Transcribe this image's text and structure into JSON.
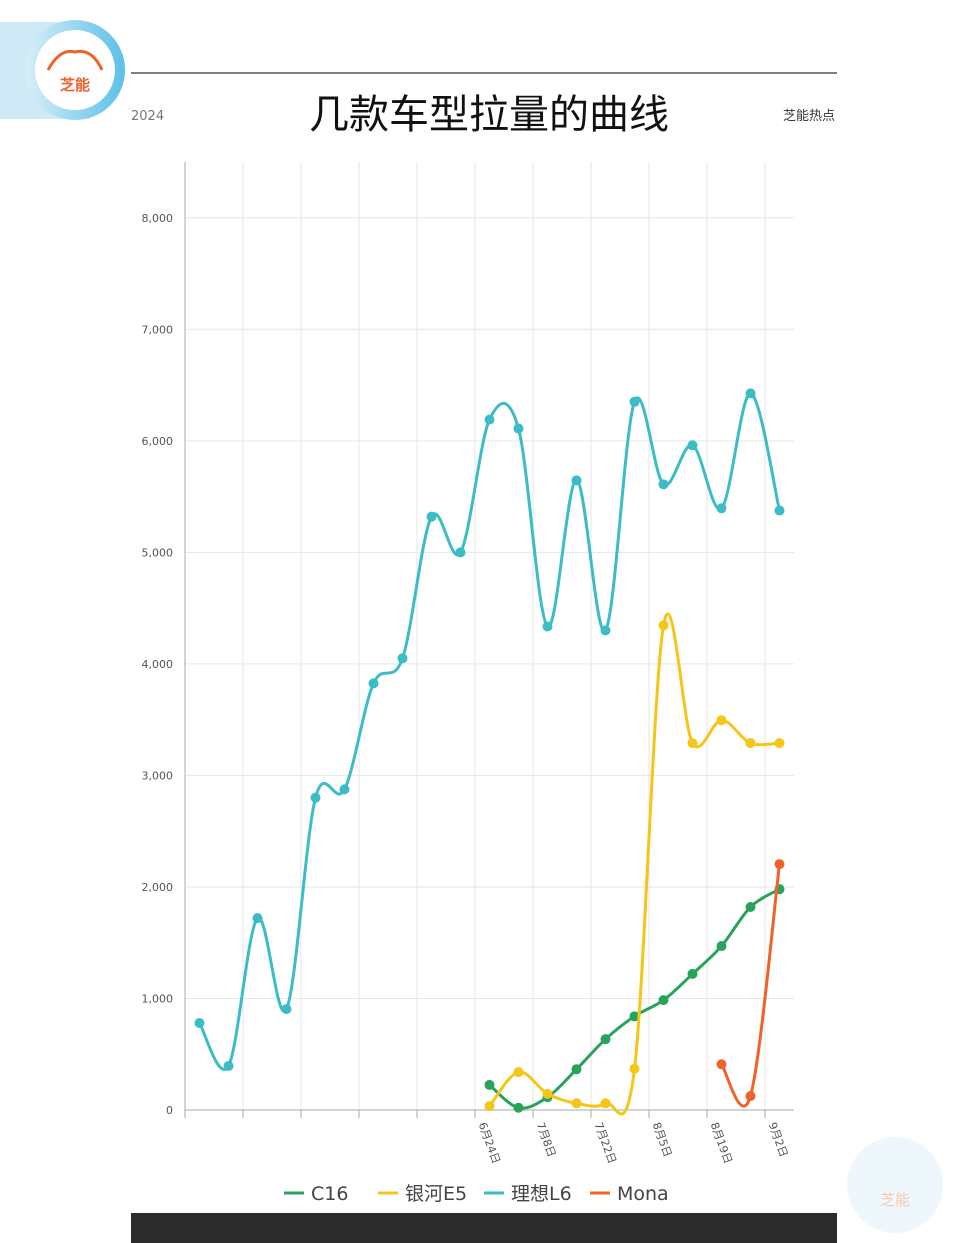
{
  "header": {
    "logo": "芝能",
    "year": "2024",
    "title": "几款车型拉量的曲线",
    "source": "芝能热点"
  },
  "chart_data": {
    "type": "line",
    "categories": [
      null,
      null,
      null,
      null,
      null,
      null,
      null,
      null,
      null,
      null,
      "6月24日",
      null,
      "7月8日",
      null,
      "7月22日",
      null,
      "8月5日",
      null,
      "8月19日",
      null,
      "9月2日"
    ],
    "series": [
      {
        "name": "C16",
        "color": "#27a35a",
        "values": [
          null,
          null,
          null,
          null,
          null,
          null,
          null,
          null,
          null,
          null,
          225,
          20,
          115,
          365,
          635,
          840,
          985,
          1220,
          1470,
          1820,
          1980
        ]
      },
      {
        "name": "银河E5",
        "color": "#f5c518",
        "values": [
          null,
          null,
          null,
          null,
          null,
          null,
          null,
          null,
          null,
          null,
          35,
          340,
          145,
          60,
          60,
          370,
          4345,
          3290,
          3495,
          3290,
          3290
        ]
      },
      {
        "name": "理想L6",
        "color": "#3bbcc6",
        "values": [
          780,
          395,
          1720,
          905,
          2800,
          2875,
          3825,
          4050,
          5320,
          5000,
          6190,
          6110,
          4335,
          5645,
          4300,
          6350,
          5610,
          5960,
          5395,
          6425,
          5375
        ]
      },
      {
        "name": "Mona",
        "color": "#f0622a",
        "values": [
          null,
          null,
          null,
          null,
          null,
          null,
          null,
          null,
          null,
          null,
          null,
          null,
          null,
          null,
          null,
          null,
          null,
          null,
          410,
          125,
          2205
        ]
      }
    ],
    "ylim": [
      0,
      8500
    ],
    "yticks": [
      0,
      {
        "value": 1000,
        "label": "1,000"
      },
      {
        "value": 2000,
        "label": "2,000"
      },
      {
        "value": 3000,
        "label": "3,000"
      },
      {
        "value": 4000,
        "label": "4,000"
      },
      {
        "value": 5000,
        "label": "5,000"
      },
      {
        "value": 6000,
        "label": "6,000"
      },
      {
        "value": 7000,
        "label": "7,000"
      },
      {
        "value": 8000,
        "label": "8,000"
      }
    ],
    "grid": true,
    "legend": "bottom"
  }
}
